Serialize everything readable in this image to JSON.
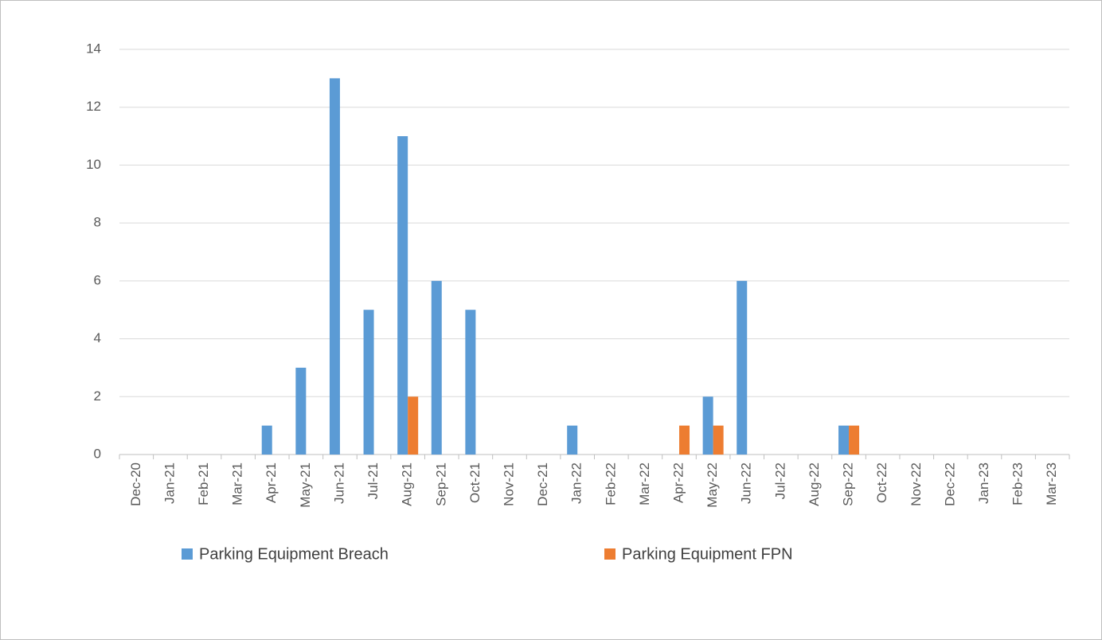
{
  "chart_data": {
    "type": "bar",
    "categories": [
      "Dec-20",
      "Jan-21",
      "Feb-21",
      "Mar-21",
      "Apr-21",
      "May-21",
      "Jun-21",
      "Jul-21",
      "Aug-21",
      "Sep-21",
      "Oct-21",
      "Nov-21",
      "Dec-21",
      "Jan-22",
      "Feb-22",
      "Mar-22",
      "Apr-22",
      "May-22",
      "Jun-22",
      "Jul-22",
      "Aug-22",
      "Sep-22",
      "Oct-22",
      "Nov-22",
      "Dec-22",
      "Jan-23",
      "Feb-23",
      "Mar-23"
    ],
    "series": [
      {
        "name": "Parking Equipment Breach",
        "color": "#5b9bd5",
        "values": [
          0,
          0,
          0,
          0,
          1,
          3,
          13,
          5,
          11,
          6,
          5,
          0,
          0,
          1,
          0,
          0,
          0,
          2,
          6,
          0,
          0,
          1,
          0,
          0,
          0,
          0,
          0,
          0
        ]
      },
      {
        "name": "Parking Equipment FPN",
        "color": "#ed7d31",
        "values": [
          0,
          0,
          0,
          0,
          0,
          0,
          0,
          0,
          2,
          0,
          0,
          0,
          0,
          0,
          0,
          0,
          1,
          1,
          0,
          0,
          0,
          1,
          0,
          0,
          0,
          0,
          0,
          0
        ]
      }
    ],
    "ylim": [
      0,
      14
    ],
    "yticks": [
      0,
      2,
      4,
      6,
      8,
      10,
      12,
      14
    ],
    "grid": true,
    "legend": "bottom"
  }
}
